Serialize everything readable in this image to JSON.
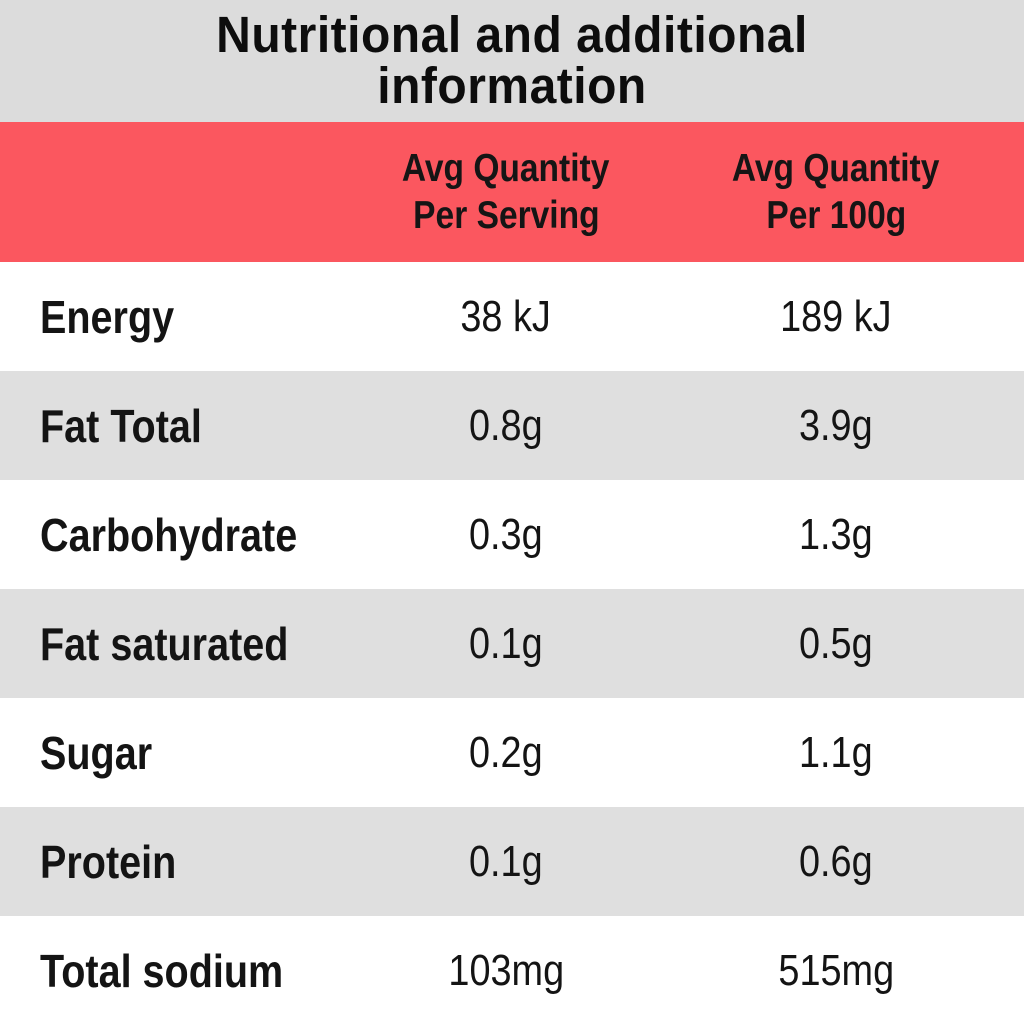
{
  "title": {
    "line1": "Nutritional and additional",
    "line2": "information"
  },
  "columns": {
    "per_serving": {
      "line1": "Avg Quantity",
      "line2": "Per Serving"
    },
    "per_100g": {
      "line1": "Avg Quantity",
      "line2": "Per 100g"
    }
  },
  "rows": [
    {
      "label": "Energy",
      "per_serving": "38 kJ",
      "per_100g": "189 kJ"
    },
    {
      "label": "Fat Total",
      "per_serving": "0.8g",
      "per_100g": "3.9g"
    },
    {
      "label": "Carbohydrate",
      "per_serving": "0.3g",
      "per_100g": "1.3g"
    },
    {
      "label": "Fat saturated",
      "per_serving": "0.1g",
      "per_100g": "0.5g"
    },
    {
      "label": "Sugar",
      "per_serving": "0.2g",
      "per_100g": "1.1g"
    },
    {
      "label": "Protein",
      "per_serving": "0.1g",
      "per_100g": "0.6g"
    },
    {
      "label": "Total sodium",
      "per_serving": "103mg",
      "per_100g": "515mg"
    }
  ],
  "colors": {
    "header_red": "#fb575f",
    "title_band_gray": "#dcdcdc",
    "row_alt_gray": "#dfdfdf",
    "row_white": "#ffffff",
    "text_black": "#141414"
  }
}
